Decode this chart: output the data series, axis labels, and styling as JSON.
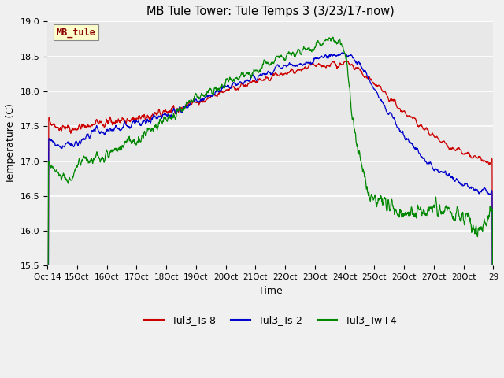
{
  "title": "MB Tule Tower: Tule Temps 3 (3/23/17-now)",
  "xlabel": "Time",
  "ylabel": "Temperature (C)",
  "ylim": [
    15.5,
    19.0
  ],
  "yticks": [
    15.5,
    16.0,
    16.5,
    17.0,
    17.5,
    18.0,
    18.5,
    19.0
  ],
  "xtick_labels": [
    "Oct 14",
    "15Oct",
    "16Oct",
    "17Oct",
    "18Oct",
    "19Oct",
    "20Oct",
    "21Oct",
    "22Oct",
    "23Oct",
    "24Oct",
    "25Oct",
    "26Oct",
    "27Oct",
    "28Oct",
    "29"
  ],
  "legend_labels": [
    "Tul3_Ts-8",
    "Tul3_Ts-2",
    "Tul3_Tw+4"
  ],
  "colors": [
    "#cc0000",
    "#0000cc",
    "#008800"
  ],
  "watermark_text": "MB_tule",
  "watermark_color": "#8b0000",
  "watermark_bg": "#ffffcc",
  "fig_bg": "#f0f0f0",
  "axes_bg": "#e8e8e8",
  "grid_color": "#ffffff",
  "n_points": 1500
}
